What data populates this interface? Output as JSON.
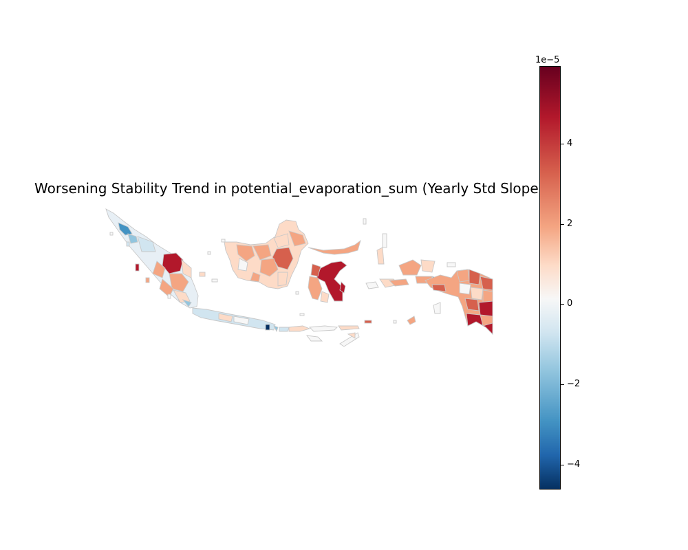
{
  "title": "Worsening Stability Trend in potential_evaporation_sum (Yearly Std Slope)",
  "colorbar": {
    "multiplier": "1e−5",
    "ticks": [
      "4",
      "2",
      "0",
      "−2",
      "−4"
    ],
    "range": [
      -4.6,
      5.8
    ],
    "colormap": "RdBu_r"
  },
  "colors": {
    "dark_red": "#b2182b",
    "red": "#d6604d",
    "salmon": "#f4a582",
    "pale": "#fddbc7",
    "white": "#f7f7f7",
    "light_blue": "#d1e5f0",
    "blue": "#4393c3",
    "dark_blue": "#053061",
    "border": "#c8c8c8"
  }
}
